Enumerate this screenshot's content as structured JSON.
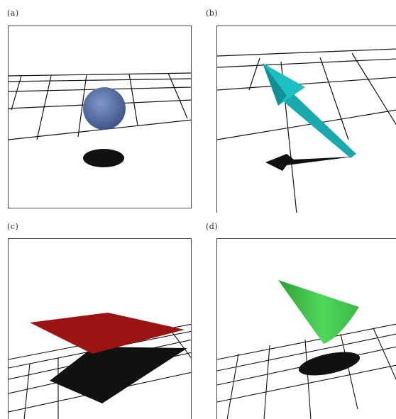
{
  "figure": {
    "panels": [
      {
        "label": "(a)",
        "object": "sphere",
        "object_color": "#5a73a8",
        "shadow_color": "#111111"
      },
      {
        "label": "(b)",
        "object": "arrow",
        "object_color": "#17b4b4",
        "shadow_color": "#111111"
      },
      {
        "label": "(c)",
        "object": "plane",
        "object_color": "#9b1414",
        "shadow_color": "#111111"
      },
      {
        "label": "(d)",
        "object": "cone",
        "object_color": "#3fc64a",
        "shadow_color": "#111111"
      }
    ],
    "grid_color": "#111111"
  }
}
